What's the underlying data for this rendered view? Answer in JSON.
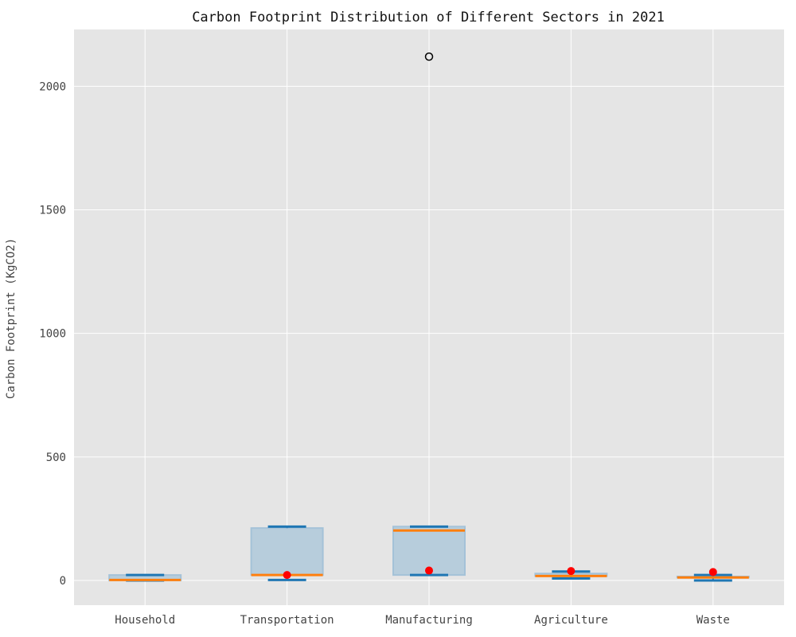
{
  "chart_data": {
    "type": "box",
    "title": "Carbon Footprint Distribution of Different Sectors in 2021",
    "xlabel": "",
    "ylabel": "Carbon Footprint (KgCO2)",
    "ylim": [
      -100,
      2230
    ],
    "yticks": [
      0,
      500,
      1000,
      1500,
      2000
    ],
    "grid": true,
    "categories": [
      "Household",
      "Transportation",
      "Manufacturing",
      "Agriculture",
      "Waste"
    ],
    "boxes": [
      {
        "category": "Household",
        "whisker_low": 0,
        "q1": 0,
        "median": 2,
        "q3": 22,
        "whisker_high": 22,
        "mean": null,
        "outliers": []
      },
      {
        "category": "Transportation",
        "whisker_low": 2,
        "q1": 22,
        "median": 22,
        "q3": 212,
        "whisker_high": 218,
        "mean": 22,
        "outliers": []
      },
      {
        "category": "Manufacturing",
        "whisker_low": 22,
        "q1": 22,
        "median": 202,
        "q3": 218,
        "whisker_high": 218,
        "mean": 40,
        "outliers": [
          2120
        ]
      },
      {
        "category": "Agriculture",
        "whisker_low": 8,
        "q1": 18,
        "median": 18,
        "q3": 28,
        "whisker_high": 36,
        "mean": 38,
        "outliers": []
      },
      {
        "category": "Waste",
        "whisker_low": 0,
        "q1": 12,
        "median": 12,
        "q3": 16,
        "whisker_high": 22,
        "mean": 34,
        "outliers": []
      }
    ],
    "colors": {
      "background": "#e5e5e5",
      "grid": "#ffffff",
      "box_fill": "#b7cddc",
      "box_edge": "#a4c2d8",
      "whisker": "#1f77b4",
      "median": "#ff7f0e",
      "mean": "#ff0000",
      "outlier": "#000000"
    }
  }
}
